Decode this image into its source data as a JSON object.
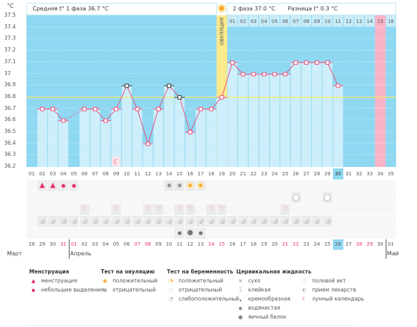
{
  "header": {
    "unit": "°C",
    "phase1": "Средняя t° 1 фаза 36.7 °C",
    "phase2": "2 фаза 37.0 °C",
    "diff": "Разница t° 0.3 °C"
  },
  "y_ticks": [
    "37.5",
    "37.4",
    "37.3",
    "37.2",
    "37.1",
    "37",
    "36.9",
    "36.8",
    "36.7",
    "36.6",
    "36.5",
    "36.4",
    "36.3",
    "36.2"
  ],
  "coverline": 36.8,
  "ovulation": {
    "day": 19,
    "label": "ОВУЛЯЦИЯ"
  },
  "cycle_days": [
    "01",
    "02",
    "03",
    "04",
    "05",
    "06",
    "07",
    "08",
    "09",
    "10",
    "11",
    "12",
    "13",
    "14",
    "15",
    "16",
    "17",
    "18",
    "19",
    "20",
    "21",
    "22",
    "23",
    "24",
    "25",
    "26",
    "27",
    "28",
    "29",
    "30",
    "31",
    "32",
    "33",
    "34",
    "35"
  ],
  "today_cycle_day": 30,
  "top_dates": {
    "start_day": 20,
    "labels": [
      "01",
      "02",
      "03",
      "04",
      "05",
      "06",
      "07",
      "08",
      "09",
      "10",
      "11",
      "12",
      "13",
      "14",
      "15",
      "16"
    ],
    "expected_period_day": 34
  },
  "temperatures": [
    null,
    36.7,
    36.7,
    36.6,
    null,
    36.7,
    36.7,
    36.6,
    36.7,
    36.9,
    36.7,
    36.4,
    36.7,
    36.9,
    36.8,
    36.5,
    36.7,
    36.7,
    36.8,
    37.1,
    37.0,
    37.0,
    37.0,
    37.0,
    37.0,
    37.1,
    37.1,
    37.1,
    37.1,
    36.9,
    null,
    null,
    null,
    null,
    null
  ],
  "special_points": [
    10,
    14,
    15
  ],
  "lunar_day": 9,
  "rows": {
    "menstruation": {
      "2": "heavy",
      "3": "heavy",
      "4": "light",
      "5": "light"
    },
    "ovulation_test": {
      "14": "negative",
      "15": "negative",
      "16": "positive",
      "17": "positive"
    },
    "pregnancy_test": {
      "26": "negative",
      "29": "negative"
    },
    "intercourse": [
      6,
      9,
      12,
      13,
      15,
      16,
      18,
      19,
      25
    ],
    "medication": [
      2,
      3,
      4,
      5,
      6,
      7,
      8,
      9,
      10,
      11,
      12,
      13,
      14,
      15,
      16,
      17,
      18,
      19,
      20,
      21,
      22,
      23,
      24,
      25,
      26,
      27,
      28,
      29
    ],
    "cervical_fluid": {
      "15": "watery",
      "16": "egg-white",
      "17": "watery"
    }
  },
  "dates": [
    {
      "d": "28"
    },
    {
      "d": "29"
    },
    {
      "d": "30"
    },
    {
      "d": "31",
      "red": true
    },
    {
      "d": "01",
      "red": true
    },
    {
      "d": "02"
    },
    {
      "d": "03"
    },
    {
      "d": "04"
    },
    {
      "d": "05"
    },
    {
      "d": "06"
    },
    {
      "d": "07",
      "red": true
    },
    {
      "d": "08",
      "red": true
    },
    {
      "d": "09"
    },
    {
      "d": "10"
    },
    {
      "d": "11"
    },
    {
      "d": "12"
    },
    {
      "d": "13"
    },
    {
      "d": "14",
      "red": true
    },
    {
      "d": "15",
      "red": true
    },
    {
      "d": "16"
    },
    {
      "d": "17"
    },
    {
      "d": "18"
    },
    {
      "d": "19"
    },
    {
      "d": "20"
    },
    {
      "d": "21",
      "red": true
    },
    {
      "d": "22",
      "red": true
    },
    {
      "d": "23"
    },
    {
      "d": "24"
    },
    {
      "d": "25"
    },
    {
      "d": "26",
      "today": true
    },
    {
      "d": "27"
    },
    {
      "d": "28",
      "red": true
    },
    {
      "d": "29",
      "red": true
    },
    {
      "d": "30"
    },
    {
      "d": "01"
    }
  ],
  "months": [
    {
      "name": "Март",
      "start_day": 1
    },
    {
      "name": "Апрель",
      "start_day": 5
    },
    {
      "name": "Май",
      "start_day": 35
    }
  ],
  "legend": {
    "menstruation": {
      "title": "Менструация",
      "items": [
        "менструация",
        "небольшие выделения"
      ]
    },
    "ovulation_test": {
      "title": "Тест на овуляцию",
      "items": [
        "положительный",
        "отрицательный"
      ]
    },
    "pregnancy_test": {
      "title": "Тест на беременность",
      "items": [
        "положительный",
        "отрицательный",
        "слабоположительный"
      ]
    },
    "cervical_fluid": {
      "title": "Цервикальная жидкость",
      "items": [
        "сухо",
        "клейкая",
        "кремообразная",
        "водянистая",
        "яичный белок"
      ]
    },
    "other": {
      "items": [
        "половой акт",
        "прием лекарств",
        "лунный календарь"
      ]
    }
  },
  "colors": {
    "plot_bg": "#8fd8f2",
    "bar": "#cdeefb",
    "line": "#e8507a",
    "ovulation": "#fbe98a",
    "period": "#f9b3c7",
    "coverline": "#f3e45a",
    "today": "#8fd8f2"
  }
}
